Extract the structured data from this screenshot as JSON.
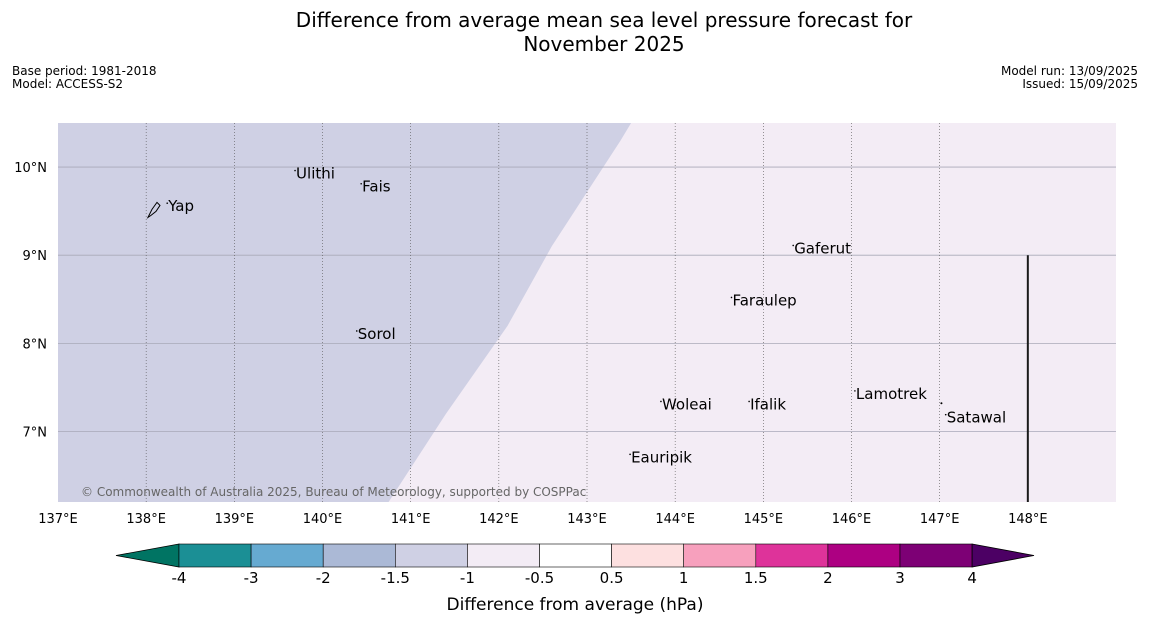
{
  "header": {
    "title_line1": "Difference from average mean sea level pressure forecast for",
    "title_line2": "November 2025",
    "base_period": "Base period: 1981-2018",
    "model": "Model: ACCESS-S2",
    "model_run": "Model run: 13/09/2025",
    "issued": "Issued: 15/09/2025"
  },
  "map": {
    "lon_range": [
      137,
      149
    ],
    "lat_range": [
      6.2,
      10.5
    ],
    "lat_labels": [
      "10°N",
      "9°N",
      "8°N",
      "7°N"
    ],
    "lon_labels": [
      "137°E",
      "138°E",
      "139°E",
      "140°E",
      "141°E",
      "142°E",
      "143°E",
      "144°E",
      "145°E",
      "146°E",
      "147°E",
      "148°E"
    ],
    "regions": [
      {
        "name": "-1.5 to -1 hPa",
        "color": "#cfd0e4"
      },
      {
        "name": "-1 to -0.5 hPa",
        "color": "#f3ecf5"
      }
    ],
    "places": [
      {
        "name": "Yap",
        "lon": 138.25,
        "lat": 9.5
      },
      {
        "name": "Ulithi",
        "lon": 139.7,
        "lat": 9.87
      },
      {
        "name": "Fais",
        "lon": 140.45,
        "lat": 9.72
      },
      {
        "name": "Gaferut",
        "lon": 145.35,
        "lat": 9.02
      },
      {
        "name": "Faraulep",
        "lon": 144.65,
        "lat": 8.43
      },
      {
        "name": "Sorol",
        "lon": 140.4,
        "lat": 8.05
      },
      {
        "name": "Lamotrek",
        "lon": 146.05,
        "lat": 7.37
      },
      {
        "name": "Woleai",
        "lon": 143.85,
        "lat": 7.25
      },
      {
        "name": "Ifalik",
        "lon": 144.85,
        "lat": 7.25
      },
      {
        "name": "Satawal",
        "lon": 147.08,
        "lat": 7.1
      },
      {
        "name": "Eauripik",
        "lon": 143.5,
        "lat": 6.65
      }
    ],
    "copyright": "© Commonwealth of Australia 2025, Bureau of Meteorology, supported by COSPPac"
  },
  "colorbar": {
    "title": "Difference from average (hPa)",
    "boundaries": [
      "-4",
      "-3",
      "-2",
      "-1.5",
      "-1",
      "-0.5",
      "0.5",
      "1",
      "1.5",
      "2",
      "3",
      "4"
    ],
    "colors": [
      "#1b8f95",
      "#66aad1",
      "#abb9d6",
      "#cfd0e4",
      "#f3ecf5",
      "#ffffff",
      "#fde0e0",
      "#f7a0bd",
      "#de339a",
      "#ad0082",
      "#7d0075"
    ],
    "extend_low_color": "#007463",
    "extend_high_color": "#4c0064"
  }
}
